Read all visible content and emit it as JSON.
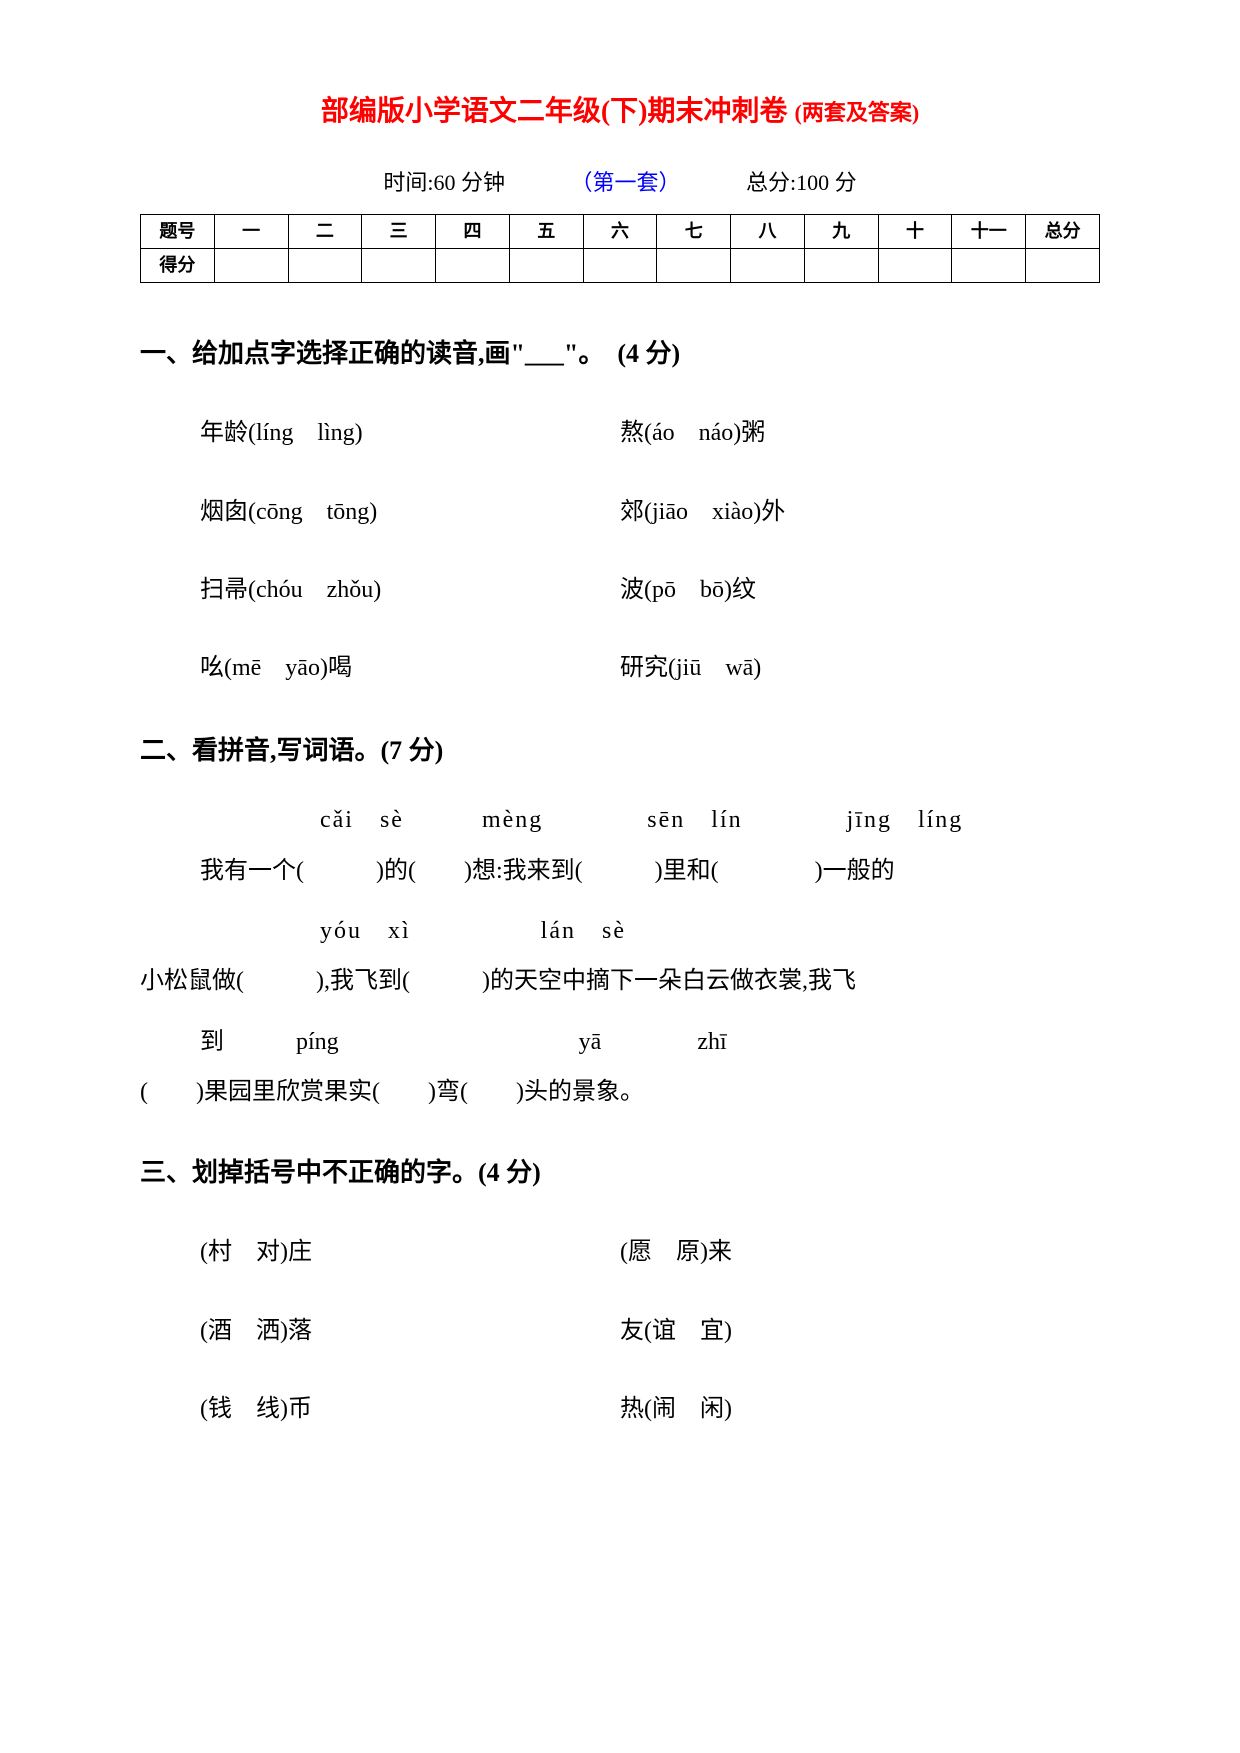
{
  "title_main": "部编版小学语文二年级(下)期末冲刺卷",
  "title_sub": "(两套及答案)",
  "info": {
    "time_label": "时间:60 分钟",
    "set_label": "（第一套）",
    "total_label": "总分:100 分"
  },
  "score_table": {
    "row_label_1": "题号",
    "row_label_2": "得分",
    "cols": [
      "一",
      "二",
      "三",
      "四",
      "五",
      "六",
      "七",
      "八",
      "九",
      "十",
      "十一",
      "总分"
    ]
  },
  "q1": {
    "head": "一、给加点字选择正确的读音,画\"___\"。　(4 分)",
    "items": [
      [
        "年龄(líng　lìng)",
        "熬(áo　náo)粥"
      ],
      [
        "烟囱(cōng　tōng)",
        "郊(jiāo　xiào)外"
      ],
      [
        "扫帚(chóu　zhǒu)",
        "波(pō　bō)纹"
      ],
      [
        "吆(mē　yāo)喝",
        "研究(jiū　wā)"
      ]
    ]
  },
  "q2": {
    "head": "二、看拼音,写词语。(7 分)",
    "pinyin1": "cǎi　sè　　　mèng　　　　sēn　lín　　　　jīng　líng",
    "text1": "我有一个(　　　)的(　　)想:我来到(　　　)里和(　　　　)一般的",
    "pinyin2": "yóu　xì　　　　　lán　sè",
    "text2": "小松鼠做(　　　),我飞到(　　　)的天空中摘下一朵白云做衣裳,我飞",
    "pinyin3": "到　　　píng　　　　　　　　　　yā　　　　zhī",
    "text3": "(　　)果园里欣赏果实(　　)弯(　　)头的景象。"
  },
  "q3": {
    "head": "三、划掉括号中不正确的字。(4 分)",
    "items": [
      [
        "(村　对)庄",
        "(愿　原)来"
      ],
      [
        "(酒　洒)落",
        "友(谊　宜)"
      ],
      [
        "(钱　线)币",
        "热(闹　闲)"
      ]
    ]
  },
  "colors": {
    "title": "#ff0000",
    "set": "#0000ff",
    "text": "#000000",
    "bg": "#ffffff"
  }
}
